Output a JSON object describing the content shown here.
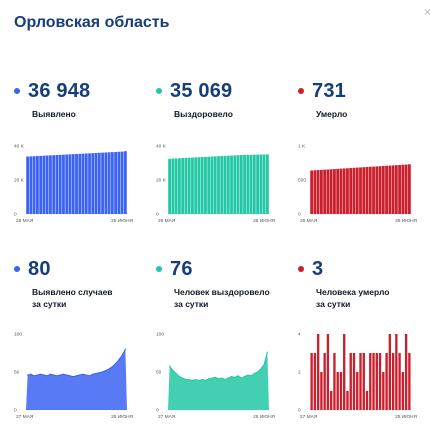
{
  "header": {
    "title": "Орловская область",
    "close_glyph": "×"
  },
  "cards": [
    {
      "id": "detected",
      "value": "36 948",
      "label": "Выявлено",
      "color": "#3b63f3",
      "chart_data": {
        "type": "bar",
        "y_ticks": [
          "40 K",
          "20 K",
          "0"
        ],
        "ylim": [
          0,
          40000
        ],
        "x_labels": [
          "26 МАЯ",
          "25 ИЮНЯ"
        ],
        "values": [
          33800,
          33900,
          34000,
          34100,
          34200,
          34300,
          34400,
          34500,
          34600,
          34700,
          34800,
          34900,
          35000,
          35100,
          35200,
          35300,
          35400,
          35500,
          35600,
          35700,
          35800,
          35900,
          36000,
          36100,
          36200,
          36300,
          36400,
          36500,
          36600,
          36700,
          36948
        ]
      }
    },
    {
      "id": "recovered",
      "value": "35 069",
      "label": "Выздоровело",
      "color": "#22c8a5",
      "chart_data": {
        "type": "bar",
        "y_ticks": [
          "40 K",
          "20 K",
          "0"
        ],
        "ylim": [
          0,
          40000
        ],
        "x_labels": [
          "26 МАЯ",
          "25 ИЮНЯ"
        ],
        "values": [
          32500,
          32600,
          32700,
          32800,
          32900,
          33000,
          33100,
          33200,
          33300,
          33400,
          33500,
          33600,
          33700,
          33800,
          33900,
          34000,
          34100,
          34200,
          34300,
          34400,
          34500,
          34600,
          34700,
          34750,
          34800,
          34850,
          34900,
          34950,
          35000,
          35030,
          35069
        ]
      }
    },
    {
      "id": "deaths",
      "value": "731",
      "label": "Умерло",
      "color": "#cc1f2d",
      "chart_data": {
        "type": "bar",
        "y_ticks": [
          "1 K",
          "500",
          "0"
        ],
        "ylim": [
          0,
          1000
        ],
        "x_labels": [
          "26 МАЯ",
          "25 ИЮНЯ"
        ],
        "values": [
          640,
          643,
          646,
          649,
          652,
          655,
          658,
          661,
          664,
          667,
          670,
          673,
          676,
          679,
          682,
          685,
          688,
          691,
          694,
          697,
          700,
          703,
          706,
          709,
          712,
          715,
          718,
          721,
          724,
          727,
          731
        ]
      }
    },
    {
      "id": "detected_daily",
      "value": "80",
      "label_lines": [
        "Выявлено случаев",
        "за сутки"
      ],
      "color": "#3b63f3",
      "chart_data": {
        "type": "area",
        "y_ticks": [
          "100",
          "50",
          "0"
        ],
        "ylim": [
          0,
          100
        ],
        "x_labels": [
          "27 МАЯ",
          "25 ИЮНЯ"
        ],
        "values": [
          46,
          47,
          45,
          46,
          47,
          46,
          45,
          47,
          46,
          45,
          46,
          47,
          46,
          45,
          44,
          45,
          46,
          47,
          46,
          45,
          47,
          48,
          49,
          50,
          52,
          54,
          57,
          61,
          66,
          72,
          80
        ]
      }
    },
    {
      "id": "recovered_daily",
      "value": "76",
      "label_lines": [
        "Человек выздоровело",
        "за сутки"
      ],
      "color": "#22c8a5",
      "chart_data": {
        "type": "area",
        "y_ticks": [
          "100",
          "50",
          "0"
        ],
        "ylim": [
          0,
          100
        ],
        "x_labels": [
          "27 МАЯ",
          "25 ИЮНЯ"
        ],
        "values": [
          58,
          52,
          48,
          44,
          42,
          40,
          40,
          39,
          40,
          39,
          40,
          39,
          41,
          42,
          43,
          41,
          42,
          40,
          42,
          44,
          43,
          45,
          42,
          44,
          46,
          45,
          48,
          50,
          54,
          60,
          76
        ]
      }
    },
    {
      "id": "deaths_daily",
      "value": "3",
      "label_lines": [
        "Человека умерло",
        "за сутки"
      ],
      "color": "#cc1f2d",
      "chart_data": {
        "type": "bar",
        "y_ticks": [
          "4",
          "2",
          "0"
        ],
        "ylim": [
          0,
          4
        ],
        "x_labels": [
          "27 МАЯ",
          "25 ИЮНЯ"
        ],
        "values": [
          3,
          3,
          4,
          2,
          3,
          4,
          1,
          3,
          2,
          2,
          4,
          1,
          3,
          3,
          2,
          3,
          3,
          1,
          3,
          3,
          3,
          3,
          2,
          3,
          4,
          3,
          4,
          3,
          2,
          4,
          3
        ]
      }
    }
  ]
}
